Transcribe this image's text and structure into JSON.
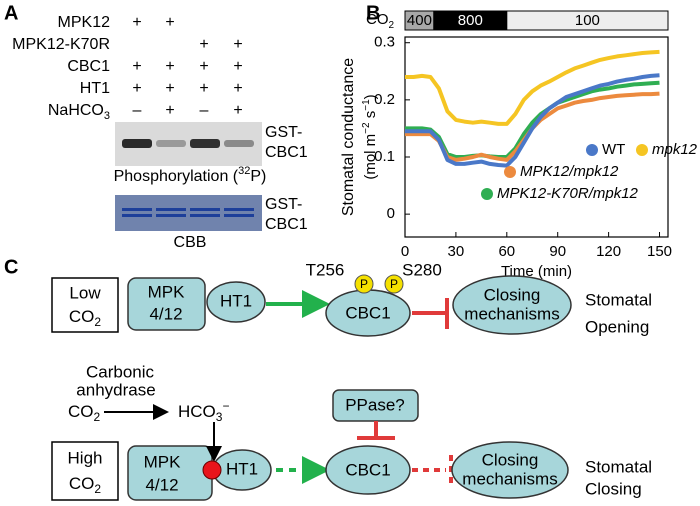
{
  "panel_a": {
    "label": "A",
    "rows": [
      {
        "name": "MPK12",
        "signs": [
          "+",
          "+",
          null,
          null
        ]
      },
      {
        "name": "MPK12-K70R",
        "signs": [
          null,
          null,
          "+",
          "+"
        ]
      },
      {
        "name": "CBC1",
        "signs": [
          "+",
          "+",
          "+",
          "+"
        ]
      },
      {
        "name": "HT1",
        "signs": [
          "+",
          "+",
          "+",
          "+"
        ]
      },
      {
        "name": "NaHCO",
        "name_sub": "3",
        "signs": [
          "–",
          "+",
          "–",
          "+"
        ]
      }
    ],
    "blot_label": [
      "GST-",
      "CBC1"
    ],
    "phospho": {
      "text": "Phosphorylation (",
      "sup": "32",
      "after": "P)"
    },
    "cbb_label": [
      "GST-",
      "CBC1"
    ],
    "cbb": "CBB"
  },
  "panel_b_label": "B",
  "chart_data": {
    "type": "line",
    "co2_label": "CO",
    "co2_sub": "2",
    "co2_periods": [
      {
        "label": "400",
        "start": 0,
        "end": 17,
        "color": "#a8a8a8",
        "text_color": "#000000"
      },
      {
        "label": "800",
        "start": 17,
        "end": 60,
        "color": "#000000",
        "text_color": "#ffffff"
      },
      {
        "label": "100",
        "start": 60,
        "end": 155,
        "color": "#eeeeee",
        "text_color": "#000000"
      }
    ],
    "y_label": "Stomatal conductance",
    "y_unit": [
      "(mol m",
      "−2",
      " s",
      "−1",
      ")"
    ],
    "x_label": "Time (min)",
    "x": [
      0,
      5,
      10,
      15,
      20,
      25,
      30,
      35,
      40,
      45,
      50,
      55,
      60,
      65,
      70,
      75,
      80,
      85,
      90,
      95,
      100,
      105,
      110,
      115,
      120,
      125,
      130,
      135,
      140,
      145,
      150
    ],
    "xlim": [
      0,
      155
    ],
    "xticks": [
      0,
      30,
      60,
      90,
      120,
      150
    ],
    "ylim": [
      -0.04,
      0.31
    ],
    "yticks": [
      0,
      0.1,
      0.2,
      0.3
    ],
    "series": [
      {
        "name": "WT",
        "color": "#4a78c8",
        "italic": false,
        "values": [
          0.145,
          0.145,
          0.145,
          0.145,
          0.13,
          0.095,
          0.088,
          0.088,
          0.09,
          0.092,
          0.088,
          0.086,
          0.085,
          0.1,
          0.125,
          0.15,
          0.17,
          0.185,
          0.195,
          0.205,
          0.21,
          0.215,
          0.22,
          0.225,
          0.228,
          0.232,
          0.235,
          0.237,
          0.24,
          0.242,
          0.243
        ]
      },
      {
        "name": "mpk12",
        "color": "#f5c523",
        "italic": true,
        "values": [
          0.24,
          0.24,
          0.242,
          0.24,
          0.22,
          0.18,
          0.165,
          0.162,
          0.16,
          0.162,
          0.16,
          0.158,
          0.158,
          0.175,
          0.2,
          0.215,
          0.225,
          0.232,
          0.24,
          0.248,
          0.255,
          0.26,
          0.265,
          0.27,
          0.273,
          0.276,
          0.278,
          0.28,
          0.282,
          0.283,
          0.284
        ]
      },
      {
        "name": "MPK12/mpk12",
        "color": "#ec8a3e",
        "italic": true,
        "values": [
          0.14,
          0.14,
          0.14,
          0.14,
          0.128,
          0.1,
          0.095,
          0.097,
          0.1,
          0.104,
          0.1,
          0.097,
          0.095,
          0.11,
          0.13,
          0.15,
          0.165,
          0.175,
          0.185,
          0.19,
          0.195,
          0.198,
          0.2,
          0.203,
          0.205,
          0.207,
          0.208,
          0.209,
          0.21,
          0.21,
          0.211
        ]
      },
      {
        "name": "MPK12-K70R/mpk12",
        "color": "#2fae52",
        "italic": true,
        "values": [
          0.15,
          0.15,
          0.15,
          0.148,
          0.135,
          0.105,
          0.1,
          0.1,
          0.102,
          0.103,
          0.101,
          0.1,
          0.1,
          0.115,
          0.14,
          0.16,
          0.175,
          0.185,
          0.195,
          0.2,
          0.205,
          0.21,
          0.215,
          0.218,
          0.22,
          0.223,
          0.225,
          0.227,
          0.228,
          0.229,
          0.23
        ]
      }
    ]
  },
  "panel_c": {
    "label": "C",
    "low_co2": {
      "line1": "Low",
      "co": "CO",
      "sub": "2"
    },
    "high_co2": {
      "line1": "High",
      "co": "CO",
      "sub": "2"
    },
    "mpk": [
      "MPK",
      "4/12"
    ],
    "ht1": "HT1",
    "cbc1": "CBC1",
    "sites": [
      "T256",
      "S280"
    ],
    "phospho": "P",
    "closing": [
      "Closing",
      "mechanisms"
    ],
    "opening_outcome": [
      "Stomatal",
      "Opening"
    ],
    "closing_outcome": [
      "Stomatal",
      "Closing"
    ],
    "enzyme": [
      "Carbonic",
      "anhydrase"
    ],
    "co2": {
      "co": "CO",
      "sub": "2"
    },
    "bicarbonate": {
      "text": "HCO",
      "sub": "3",
      "sup": "−"
    },
    "ppase": "PPase?"
  }
}
